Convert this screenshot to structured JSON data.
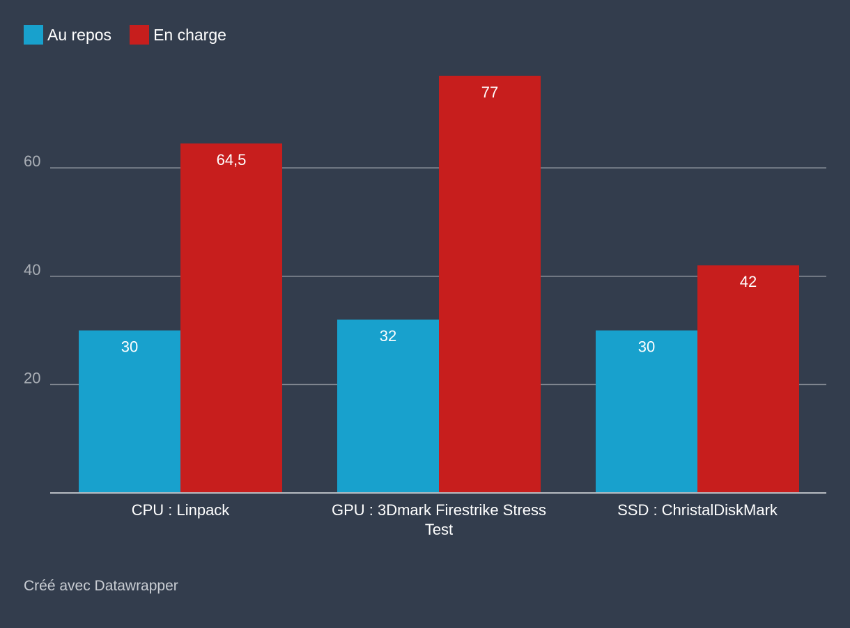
{
  "chart_data": {
    "type": "bar",
    "title": "",
    "xlabel": "",
    "ylabel": "",
    "categories": [
      "CPU : Linpack",
      "GPU : 3Dmark Firestrike Stress Test",
      "SSD : ChristalDiskMark"
    ],
    "category_lines": [
      [
        "CPU : Linpack"
      ],
      [
        "GPU : 3Dmark Firestrike Stress",
        "Test"
      ],
      [
        "SSD : ChristalDiskMark"
      ]
    ],
    "series": [
      {
        "name": "Au repos",
        "color": "#18a1cd",
        "values": [
          30,
          32,
          30
        ],
        "labels": [
          "30",
          "32",
          "30"
        ]
      },
      {
        "name": "En charge",
        "color": "#c71e1d",
        "values": [
          64.5,
          77,
          42
        ],
        "labels": [
          "64,5",
          "77",
          "42"
        ]
      }
    ],
    "ylim": [
      0,
      80
    ],
    "yticks": [
      20,
      40,
      60
    ],
    "ytick_labels": [
      "20",
      "40",
      "60"
    ],
    "grid": true,
    "legend": "top-left"
  },
  "legend": {
    "items": [
      {
        "label": "Au repos",
        "color": "#18a1cd"
      },
      {
        "label": "En charge",
        "color": "#c71e1d"
      }
    ]
  },
  "footer": {
    "credit": "Créé avec Datawrapper"
  },
  "colors": {
    "background": "#333d4d",
    "gridline": "#8c929b",
    "axis_text": "#a9aeb5",
    "label_text": "#ffffff"
  }
}
